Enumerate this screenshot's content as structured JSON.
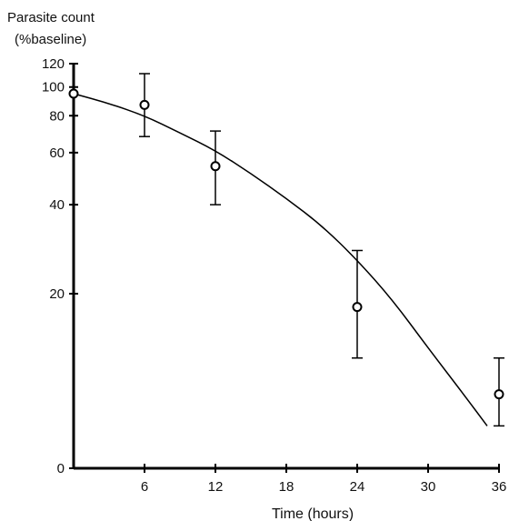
{
  "chart_data": {
    "type": "scatter",
    "ylabel_lines": [
      "Parasite count",
      "(%baseline)"
    ],
    "xlabel": "Time (hours)",
    "x_ticks": [
      6,
      12,
      18,
      24,
      30,
      36
    ],
    "y_ticks": [
      0,
      20,
      40,
      60,
      80,
      100,
      120
    ],
    "xlim": [
      0,
      36
    ],
    "ylim": [
      0,
      120
    ],
    "y_scale": "log",
    "grid": false,
    "points": [
      {
        "x": 0,
        "y": 95,
        "err_low": 95,
        "err_high": 95
      },
      {
        "x": 6,
        "y": 87,
        "err_low": 68,
        "err_high": 111
      },
      {
        "x": 12,
        "y": 54,
        "err_low": 40,
        "err_high": 71
      },
      {
        "x": 24,
        "y": 18,
        "err_low": 12,
        "err_high": 28
      },
      {
        "x": 36,
        "y": 9,
        "err_low": 7,
        "err_high": 12
      }
    ],
    "fit_curve": {
      "x": [
        0,
        3,
        6,
        9,
        12,
        15,
        18,
        21,
        24,
        27,
        30,
        33,
        35
      ],
      "y": [
        95,
        88,
        80,
        70,
        61,
        51,
        42,
        34,
        26,
        19,
        13,
        9,
        7
      ]
    }
  }
}
